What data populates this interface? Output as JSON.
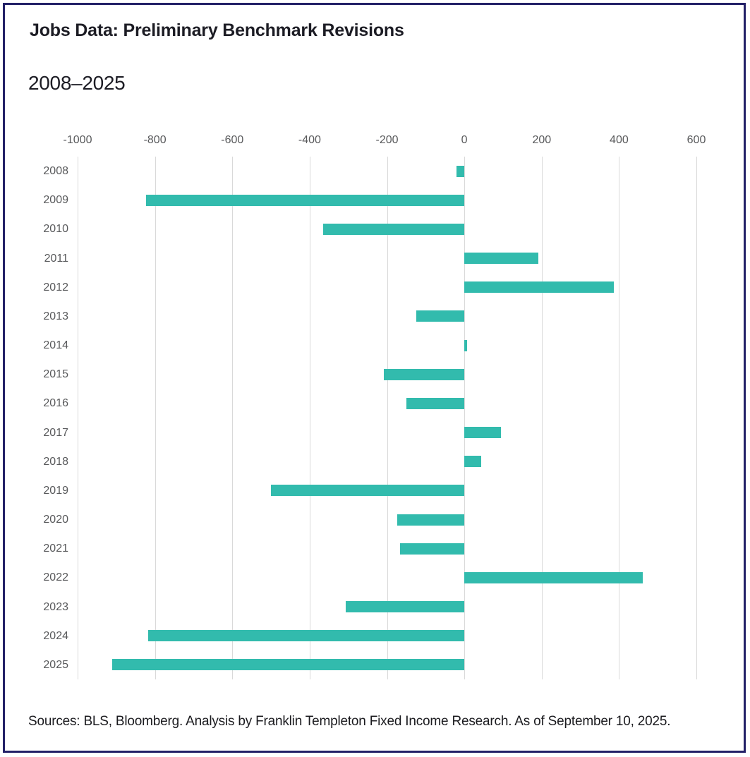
{
  "page": {
    "title": "Jobs Data: Preliminary Benchmark Revisions",
    "subtitle": "2008–2025",
    "source": "Sources: BLS, Bloomberg. Analysis by Franklin Templeton Fixed Income Research. As of September 10, 2025."
  },
  "colors": {
    "bar": "#32bbad",
    "border": "#232067",
    "gridline": "#d9d9d9",
    "axis_text": "#58595b",
    "title_text": "#1c1c24"
  },
  "chart_data": {
    "type": "bar",
    "orientation": "horizontal",
    "title": "Jobs Data: Preliminary Benchmark Revisions",
    "subtitle": "2008–2025",
    "xlabel": "",
    "ylabel": "",
    "categories": [
      "2008",
      "2009",
      "2010",
      "2011",
      "2012",
      "2013",
      "2014",
      "2015",
      "2016",
      "2017",
      "2018",
      "2019",
      "2020",
      "2021",
      "2022",
      "2023",
      "2024",
      "2025"
    ],
    "values": [
      -21,
      -824,
      -366,
      192,
      386,
      -124,
      7,
      -208,
      -150,
      95,
      43,
      -501,
      -173,
      -166,
      462,
      -306,
      -818,
      -911
    ],
    "xlim": [
      -1000,
      600
    ],
    "xticks": [
      -1000,
      -800,
      -600,
      -400,
      -200,
      0,
      200,
      400,
      600
    ],
    "xtick_labels": [
      "-1000",
      "-800",
      "-600",
      "-400",
      "-200",
      "0",
      "200",
      "400",
      "600"
    ],
    "grid": true,
    "legend": false
  }
}
